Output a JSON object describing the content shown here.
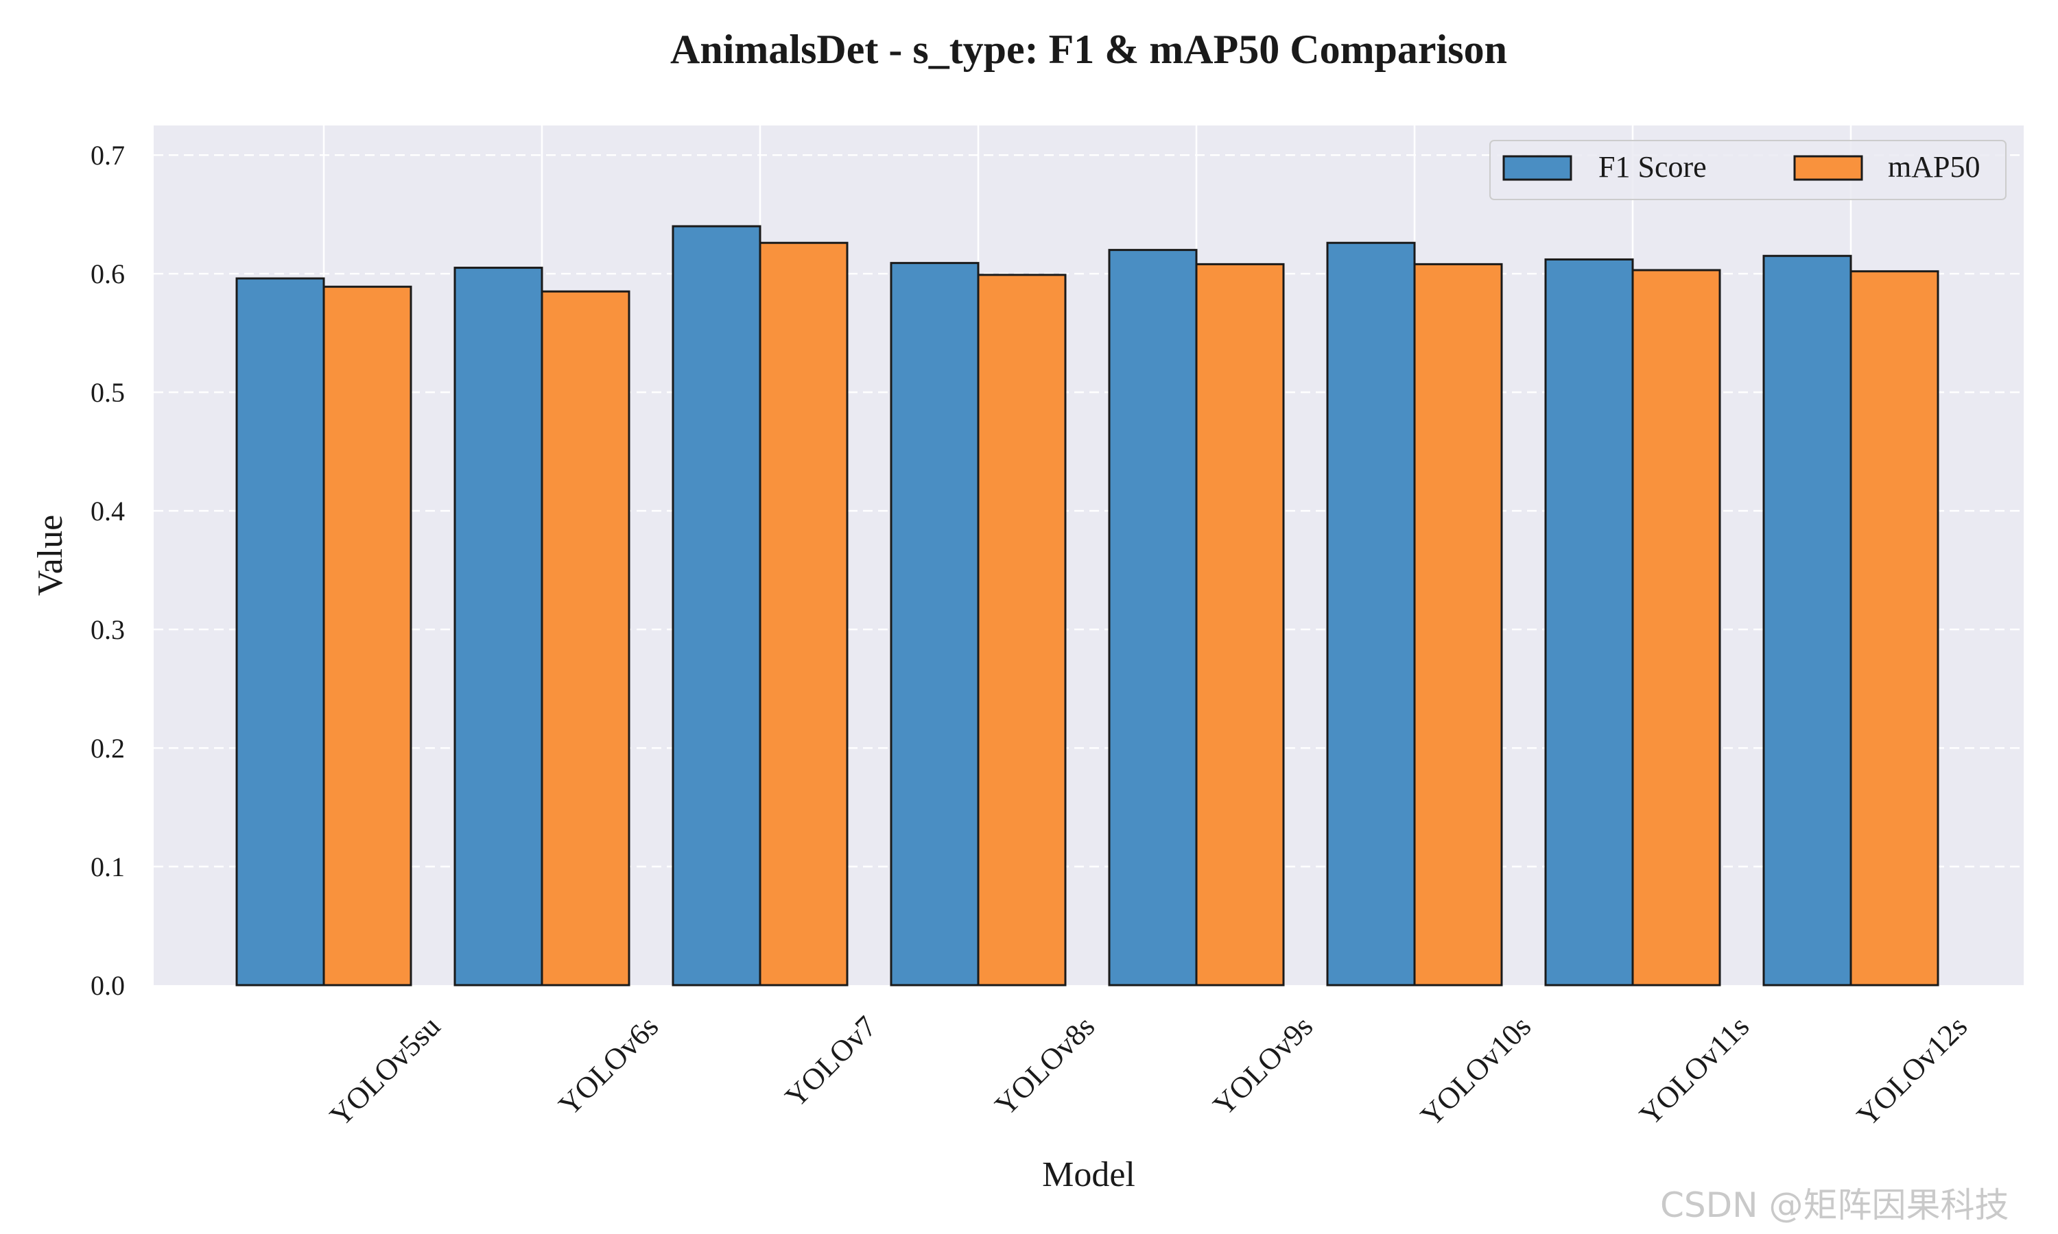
{
  "chart_data": {
    "type": "bar",
    "title": "AnimalsDet - s_type: F1 & mAP50 Comparison",
    "xlabel": "Model",
    "ylabel": "Value",
    "ylim": [
      0,
      0.725
    ],
    "yticks": [
      "0.0",
      "0.1",
      "0.2",
      "0.3",
      "0.4",
      "0.5",
      "0.6",
      "0.7"
    ],
    "categories": [
      "YOLOv5su",
      "YOLOv6s",
      "YOLOv7",
      "YOLOv8s",
      "YOLOv9s",
      "YOLOv10s",
      "YOLOv11s",
      "YOLOv12s"
    ],
    "series": [
      {
        "name": "F1 Score",
        "color": "#4a8ec3",
        "values": [
          0.596,
          0.605,
          0.64,
          0.609,
          0.62,
          0.626,
          0.612,
          0.615
        ]
      },
      {
        "name": "mAP50",
        "color": "#f9923d",
        "values": [
          0.589,
          0.585,
          0.626,
          0.599,
          0.608,
          0.608,
          0.603,
          0.602
        ]
      }
    ],
    "grid": true,
    "legend_position": "top-right",
    "background_color": "#eaeaf2"
  },
  "watermark": "CSDN @矩阵因果科技"
}
